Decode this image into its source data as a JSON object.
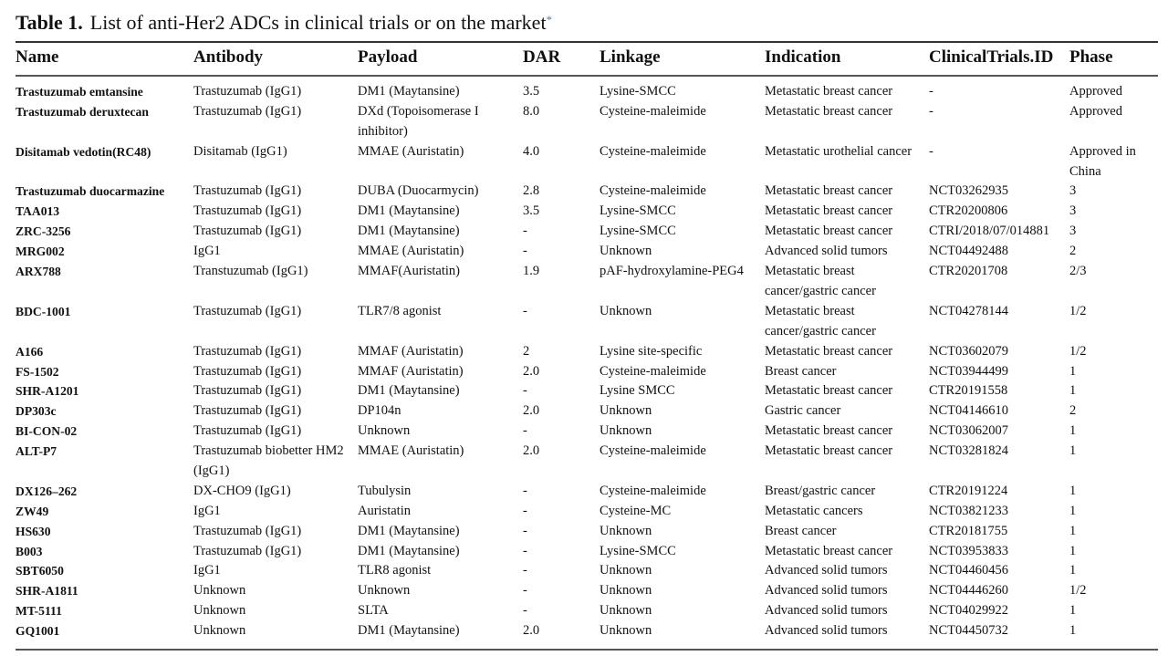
{
  "title": {
    "label": "Table 1.",
    "text": "List of anti-Her2 ADCs in clinical trials or on the market",
    "footnote_mark": "*"
  },
  "columns": [
    "Name",
    "Antibody",
    "Payload",
    "DAR",
    "Linkage",
    "Indication",
    "ClinicalTrials.ID",
    "Phase"
  ],
  "rows": [
    [
      "Trastuzumab emtansine",
      "Trastuzumab (IgG1)",
      "DM1 (Maytansine)",
      "3.5",
      "Lysine-SMCC",
      "Metastatic breast cancer",
      "-",
      "Approved"
    ],
    [
      "Trastuzumab deruxtecan",
      "Trastuzumab (IgG1)",
      "DXd (Topoisomerase I\ninhibitor)",
      "8.0",
      "Cysteine-maleimide",
      "Metastatic breast cancer",
      "-",
      "Approved"
    ],
    [
      "Disitamab vedotin(RC48)",
      "Disitamab (IgG1)",
      "MMAE (Auristatin)",
      "4.0",
      "Cysteine-maleimide",
      "Metastatic urothelial cancer",
      "-",
      "Approved in\nChina"
    ],
    [
      "Trastuzumab duocarmazine",
      "Trastuzumab (IgG1)",
      "DUBA (Duocarmycin)",
      "2.8",
      "Cysteine-maleimide",
      "Metastatic breast cancer",
      "NCT03262935",
      "3"
    ],
    [
      "TAA013",
      "Trastuzumab (IgG1)",
      "DM1 (Maytansine)",
      "3.5",
      "Lysine-SMCC",
      "Metastatic breast cancer",
      "CTR20200806",
      "3"
    ],
    [
      "ZRC-3256",
      "Trastuzumab (IgG1)",
      "DM1 (Maytansine)",
      "-",
      "Lysine-SMCC",
      "Metastatic breast cancer",
      "CTRI/2018/07/014881",
      "3"
    ],
    [
      "MRG002",
      "IgG1",
      "MMAE (Auristatin)",
      "-",
      "Unknown",
      "Advanced solid tumors",
      "NCT04492488",
      "2"
    ],
    [
      "ARX788",
      "Transtuzumab (IgG1)",
      "MMAF(Auristatin)",
      "1.9",
      "pAF-hydroxylamine-PEG4",
      "Metastatic breast\ncancer/gastric cancer",
      "CTR20201708",
      "2/3"
    ],
    [
      "BDC-1001",
      "Trastuzumab (IgG1)",
      "TLR7/8 agonist",
      "-",
      "Unknown",
      "Metastatic breast\ncancer/gastric cancer",
      "NCT04278144",
      "1/2"
    ],
    [
      "A166",
      "Trastuzumab (IgG1)",
      "MMAF (Auristatin)",
      "2",
      "Lysine site-specific",
      "Metastatic breast cancer",
      "NCT03602079",
      "1/2"
    ],
    [
      "FS-1502",
      "Trastuzumab (IgG1)",
      "MMAF (Auristatin)",
      "2.0",
      "Cysteine-maleimide",
      "Breast cancer",
      "NCT03944499",
      "1"
    ],
    [
      "SHR-A1201",
      "Trastuzumab (IgG1)",
      "DM1 (Maytansine)",
      "-",
      "Lysine SMCC",
      "Metastatic breast cancer",
      "CTR20191558",
      "1"
    ],
    [
      "DP303c",
      "Trastuzumab (IgG1)",
      "DP104n",
      "2.0",
      "Unknown",
      "Gastric cancer",
      "NCT04146610",
      "2"
    ],
    [
      "BI-CON-02",
      "Trastuzumab (IgG1)",
      "Unknown",
      "-",
      "Unknown",
      "Metastatic breast cancer",
      "NCT03062007",
      "1"
    ],
    [
      "ALT-P7",
      "Trastuzumab biobetter HM2\n(IgG1)",
      "MMAE (Auristatin)",
      "2.0",
      "Cysteine-maleimide",
      "Metastatic breast cancer",
      "NCT03281824",
      "1"
    ],
    [
      "DX126–262",
      "DX-CHO9 (IgG1)",
      "Tubulysin",
      "-",
      "Cysteine-maleimide",
      "Breast/gastric cancer",
      "CTR20191224",
      "1"
    ],
    [
      "ZW49",
      "IgG1",
      "Auristatin",
      "-",
      "Cysteine-MC",
      "Metastatic cancers",
      "NCT03821233",
      "1"
    ],
    [
      "HS630",
      "Trastuzumab (IgG1)",
      "DM1 (Maytansine)",
      "-",
      "Unknown",
      "Breast cancer",
      "CTR20181755",
      "1"
    ],
    [
      "B003",
      "Trastuzumab (IgG1)",
      "DM1 (Maytansine)",
      "-",
      "Lysine-SMCC",
      "Metastatic breast cancer",
      "NCT03953833",
      "1"
    ],
    [
      "SBT6050",
      "IgG1",
      "TLR8 agonist",
      "-",
      "Unknown",
      "Advanced solid tumors",
      "NCT04460456",
      "1"
    ],
    [
      "SHR-A1811",
      "Unknown",
      "Unknown",
      "-",
      "Unknown",
      "Advanced solid tumors",
      "NCT04446260",
      "1/2"
    ],
    [
      "MT-5111",
      "Unknown",
      "SLTA",
      "-",
      "Unknown",
      "Advanced solid tumors",
      "NCT04029922",
      "1"
    ],
    [
      "GQ1001",
      "Unknown",
      "DM1 (Maytansine)",
      "2.0",
      "Unknown",
      "Advanced solid tumors",
      "NCT04450732",
      "1"
    ]
  ]
}
